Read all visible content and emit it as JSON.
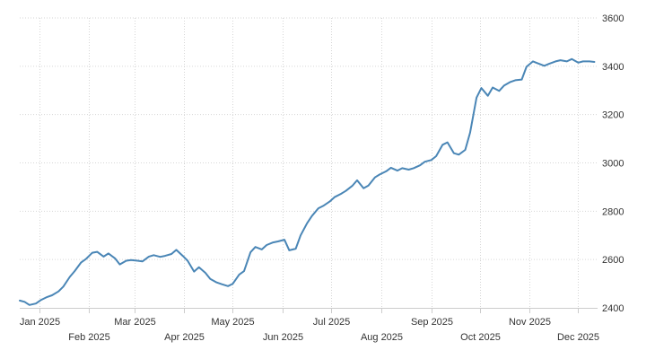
{
  "chart_data": {
    "type": "line",
    "title": "",
    "xlabel": "",
    "ylabel": "",
    "ylim": [
      2400,
      3600
    ],
    "y_ticks": [
      "2400",
      "2600",
      "2800",
      "3000",
      "3200",
      "3400",
      "3600"
    ],
    "y_tick_values": [
      2400,
      2600,
      2800,
      3000,
      3200,
      3400,
      3600
    ],
    "x_range": [
      "2024-12-20",
      "2025-12-13"
    ],
    "x_ticks_top_row": [
      "Jan 2025",
      "Mar 2025",
      "May 2025",
      "Jul 2025",
      "Sep 2025",
      "Nov 2025"
    ],
    "x_ticks_top_row_dates": [
      "2025-01-01",
      "2025-03-01",
      "2025-05-01",
      "2025-07-01",
      "2025-09-01",
      "2025-11-01"
    ],
    "x_ticks_bottom_row": [
      "Feb 2025",
      "Apr 2025",
      "Jun 2025",
      "Aug 2025",
      "Oct 2025",
      "Dec 2025"
    ],
    "x_ticks_bottom_row_dates": [
      "2025-02-01",
      "2025-04-01",
      "2025-06-01",
      "2025-08-01",
      "2025-10-01",
      "2025-12-01"
    ],
    "grid": true,
    "line_color": "#4a86b6",
    "series": [
      {
        "x": [
          "2024-12-20",
          "2024-12-23",
          "2024-12-26",
          "2024-12-30",
          "2025-01-02",
          "2025-01-06",
          "2025-01-09",
          "2025-01-13",
          "2025-01-16",
          "2025-01-20",
          "2025-01-23",
          "2025-01-27",
          "2025-01-30",
          "2025-02-03",
          "2025-02-06",
          "2025-02-10",
          "2025-02-13",
          "2025-02-17",
          "2025-02-20",
          "2025-02-24",
          "2025-02-27",
          "2025-03-03",
          "2025-03-06",
          "2025-03-10",
          "2025-03-13",
          "2025-03-17",
          "2025-03-20",
          "2025-03-24",
          "2025-03-27",
          "2025-03-31",
          "2025-04-03",
          "2025-04-07",
          "2025-04-10",
          "2025-04-14",
          "2025-04-17",
          "2025-04-21",
          "2025-04-24",
          "2025-04-28",
          "2025-05-01",
          "2025-05-05",
          "2025-05-08",
          "2025-05-12",
          "2025-05-15",
          "2025-05-19",
          "2025-05-22",
          "2025-05-26",
          "2025-05-29",
          "2025-06-02",
          "2025-06-05",
          "2025-06-09",
          "2025-06-12",
          "2025-06-16",
          "2025-06-19",
          "2025-06-23",
          "2025-06-26",
          "2025-06-30",
          "2025-07-03",
          "2025-07-07",
          "2025-07-10",
          "2025-07-14",
          "2025-07-17",
          "2025-07-21",
          "2025-07-24",
          "2025-07-28",
          "2025-07-31",
          "2025-08-04",
          "2025-08-07",
          "2025-08-11",
          "2025-08-14",
          "2025-08-18",
          "2025-08-21",
          "2025-08-25",
          "2025-08-28",
          "2025-09-01",
          "2025-09-04",
          "2025-09-08",
          "2025-09-11",
          "2025-09-15",
          "2025-09-18",
          "2025-09-22",
          "2025-09-25",
          "2025-09-29",
          "2025-10-02",
          "2025-10-06",
          "2025-10-09",
          "2025-10-13",
          "2025-10-16",
          "2025-10-20",
          "2025-10-23",
          "2025-10-27",
          "2025-10-30",
          "2025-11-03",
          "2025-11-06",
          "2025-11-10",
          "2025-11-13",
          "2025-11-17",
          "2025-11-20",
          "2025-11-24",
          "2025-11-27",
          "2025-12-01",
          "2025-12-04",
          "2025-12-08",
          "2025-12-11"
        ],
        "y": [
          2430,
          2425,
          2412,
          2418,
          2432,
          2445,
          2452,
          2468,
          2488,
          2528,
          2552,
          2588,
          2602,
          2628,
          2632,
          2612,
          2625,
          2605,
          2580,
          2595,
          2598,
          2595,
          2592,
          2612,
          2618,
          2611,
          2615,
          2623,
          2640,
          2615,
          2595,
          2550,
          2568,
          2545,
          2520,
          2505,
          2498,
          2490,
          2500,
          2538,
          2552,
          2630,
          2652,
          2642,
          2660,
          2671,
          2675,
          2682,
          2638,
          2645,
          2700,
          2750,
          2780,
          2812,
          2822,
          2840,
          2858,
          2872,
          2884,
          2905,
          2928,
          2895,
          2906,
          2940,
          2952,
          2965,
          2980,
          2968,
          2978,
          2972,
          2978,
          2990,
          3005,
          3012,
          3028,
          3075,
          3085,
          3040,
          3034,
          3054,
          3125,
          3270,
          3310,
          3278,
          3312,
          3298,
          3320,
          3335,
          3342,
          3345,
          3398,
          3420,
          3412,
          3402,
          3410,
          3420,
          3425,
          3420,
          3430,
          3415,
          3420,
          3420,
          3418
        ]
      }
    ]
  }
}
